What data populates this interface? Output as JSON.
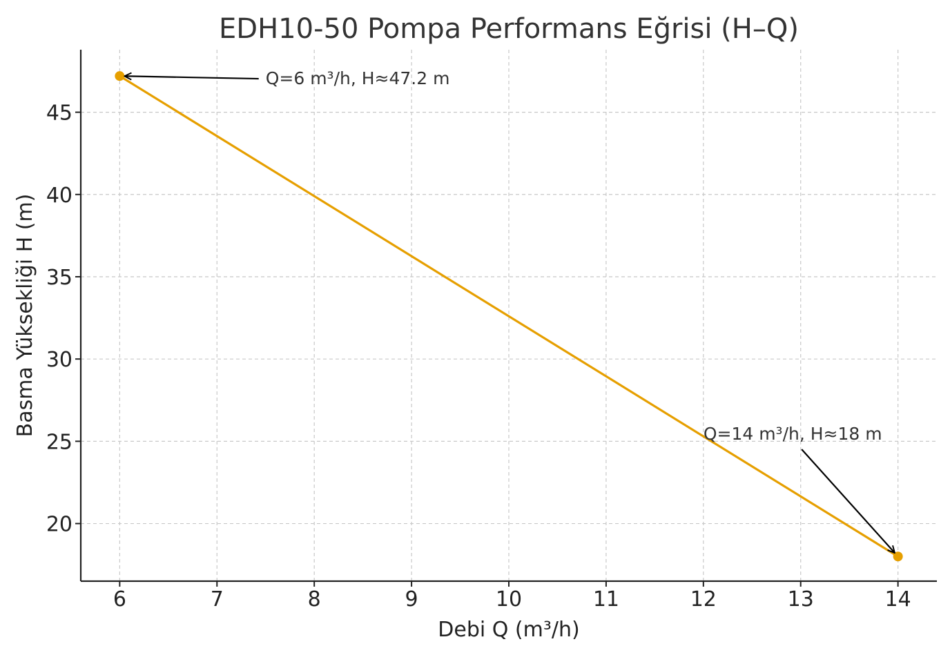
{
  "chart_data": {
    "type": "line",
    "title": "EDH10-50 Pompa Performans Eğrisi (H–Q)",
    "xlabel": "Debi Q (m³/h)",
    "ylabel": "Basma Yüksekliği H (m)",
    "xlim": [
      5.6,
      14.4
    ],
    "ylim": [
      16.5,
      48.8
    ],
    "x_ticks": [
      6,
      7,
      8,
      9,
      10,
      11,
      12,
      13,
      14
    ],
    "y_ticks": [
      20,
      25,
      30,
      35,
      40,
      45
    ],
    "grid": true,
    "color": "#E69F00",
    "series": [
      {
        "x": [
          6,
          14
        ],
        "y": [
          47.2,
          18
        ]
      }
    ],
    "annotations": [
      {
        "text": "Q=6 m³/h, H≈47.2 m",
        "point": [
          6,
          47.2
        ],
        "text_pos": [
          7.5,
          46.7
        ],
        "anchor": "start"
      },
      {
        "text": "Q=14 m³/h, H≈18 m",
        "point": [
          14,
          18
        ],
        "text_pos": [
          12.0,
          25.1
        ],
        "anchor": "start"
      }
    ]
  }
}
